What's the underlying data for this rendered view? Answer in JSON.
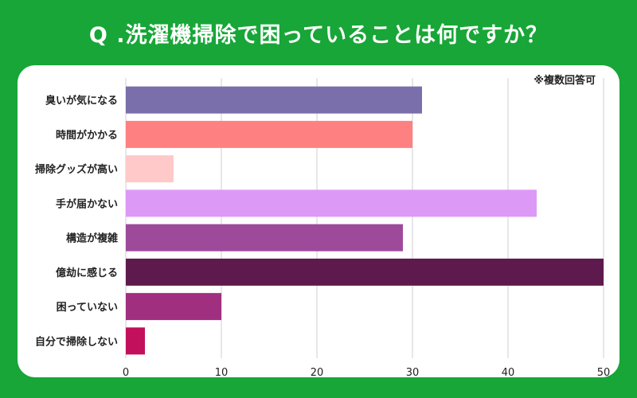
{
  "title": "Q .洗濯機掃除で困っていることは何ですか？",
  "note": "※複数回答可",
  "colors": {
    "background": "#17a637",
    "card": "#ffffff",
    "grid": "#cfcfcf"
  },
  "chart_data": {
    "type": "bar",
    "orientation": "horizontal",
    "categories": [
      "臭いが気になる",
      "時間がかかる",
      "掃除グッズが高い",
      "手が届かない",
      "構造が複雑",
      "億劫に感じる",
      "困っていない",
      "自分で掃除しない"
    ],
    "values": [
      31,
      30,
      5,
      43,
      29,
      50,
      10,
      2
    ],
    "bar_colors": [
      "#7a6fab",
      "#ff8080",
      "#ffc9c9",
      "#dd99f6",
      "#9e4a9a",
      "#5e1a4d",
      "#a0307f",
      "#c2105c"
    ],
    "xlim": [
      0,
      50
    ],
    "xticks": [
      0,
      10,
      20,
      30,
      40,
      50
    ],
    "grid": true,
    "legend": "none"
  }
}
